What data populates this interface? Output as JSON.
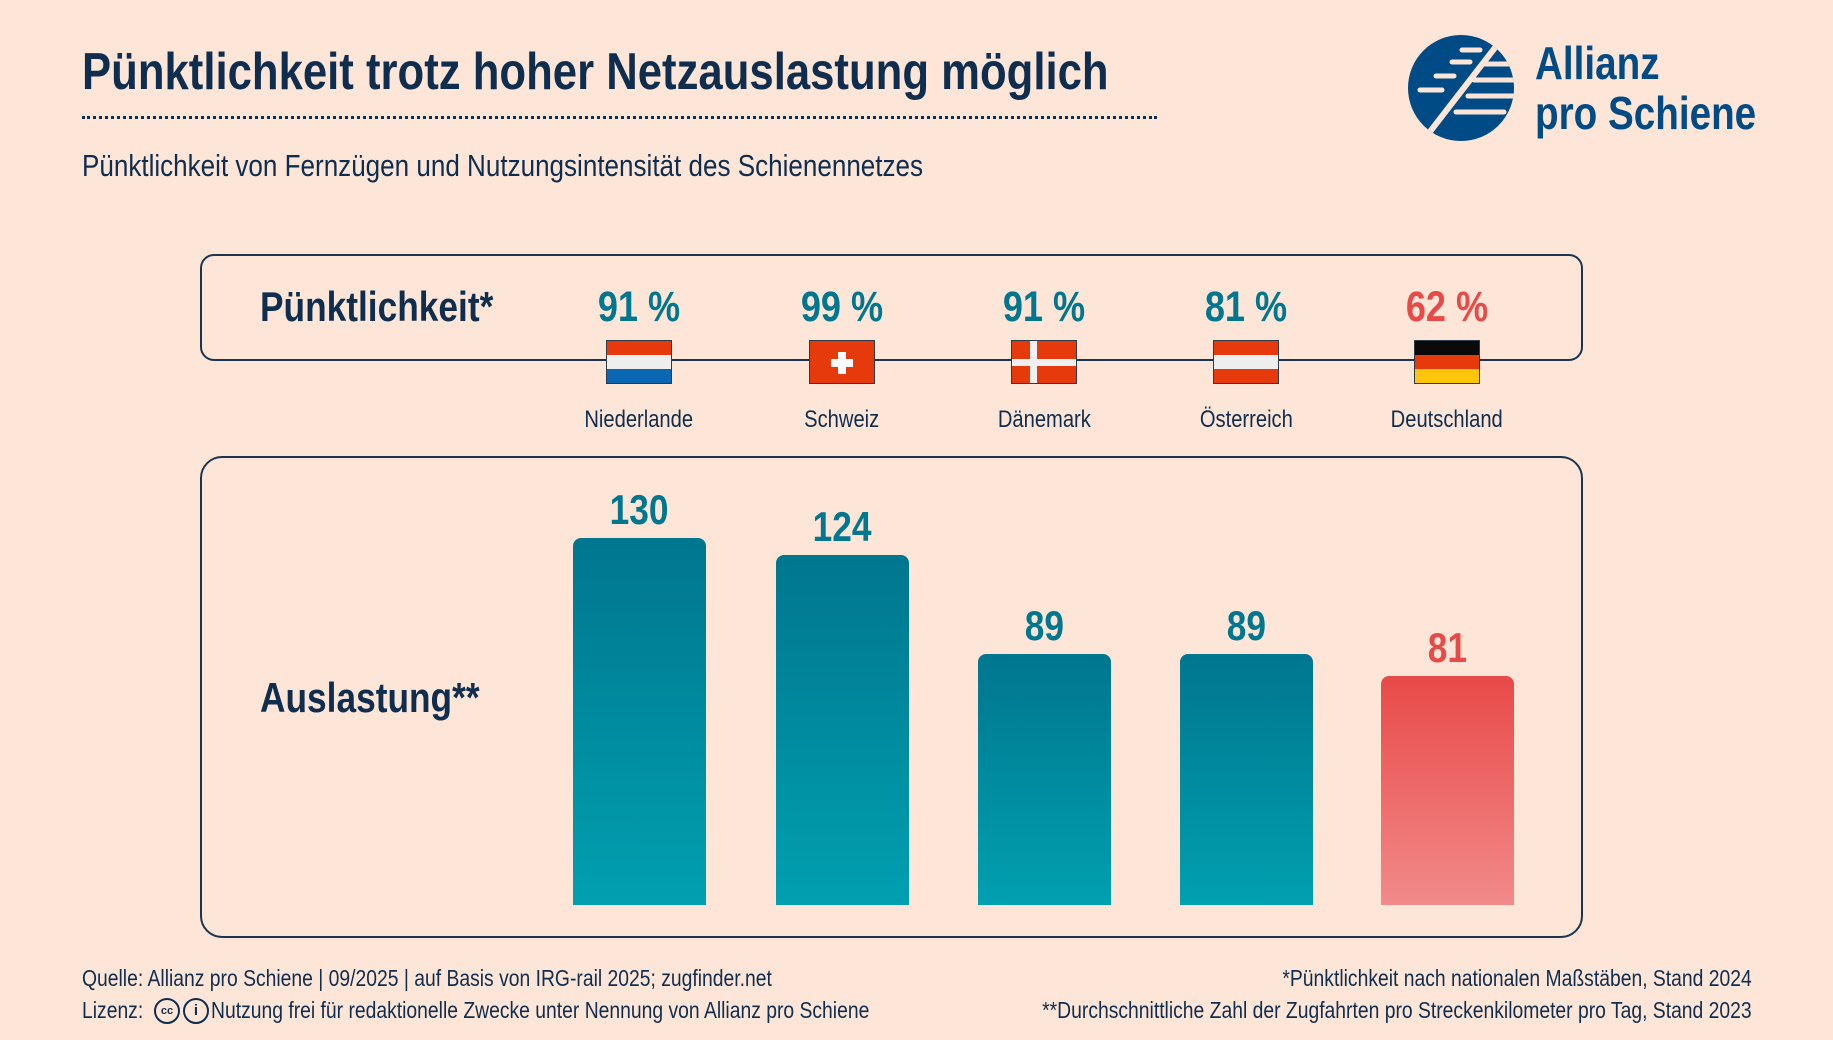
{
  "title": "Pünktlichkeit trotz hoher Netzauslastung möglich",
  "subtitle": "Pünktlichkeit von Fernzügen und Nutzungsintensität des Schienennetzes",
  "logo": {
    "line1": "Allianz",
    "line2": "pro Schiene",
    "color": "#004a85"
  },
  "colors": {
    "teal": "#00768f",
    "teal_light": "#00a0b0",
    "red": "#e84a48",
    "red_light": "#f28a8a",
    "text": "#0f2d4e",
    "background": "#fde6d8"
  },
  "punctuality_label": "Pünktlichkeit*",
  "load_label": "Auslastung**",
  "chart_data": {
    "type": "bar",
    "categories": [
      "Niederlande",
      "Schweiz",
      "Dänemark",
      "Österreich",
      "Deutschland"
    ],
    "punctuality": [
      "91 %",
      "99 %",
      "91 %",
      "81 %",
      "62 %"
    ],
    "punctuality_values": [
      91,
      99,
      91,
      81,
      62
    ],
    "flags": [
      "flag-netherlands",
      "flag-switzerland",
      "flag-denmark",
      "flag-austria",
      "flag-germany"
    ],
    "values": [
      130,
      124,
      89,
      89,
      81
    ],
    "value_labels": [
      "130",
      "124",
      "89",
      "89",
      "81"
    ],
    "highlight": [
      false,
      false,
      false,
      false,
      true
    ],
    "ylim": [
      0,
      130
    ]
  },
  "footer": {
    "source": "Quelle: Allianz pro Schiene | 09/2025 | auf Basis von IRG-rail 2025; zugfinder.net",
    "license_label": "Lizenz:",
    "license_text": "Nutzung frei für redaktionelle Zwecke unter Nennung von Allianz pro Schiene",
    "note1": "*Pünktlichkeit nach nationalen Maßstäben, Stand 2024",
    "note2": "**Durchschnittliche Zahl der Zugfahrten pro Streckenkilometer pro Tag, Stand 2023"
  }
}
